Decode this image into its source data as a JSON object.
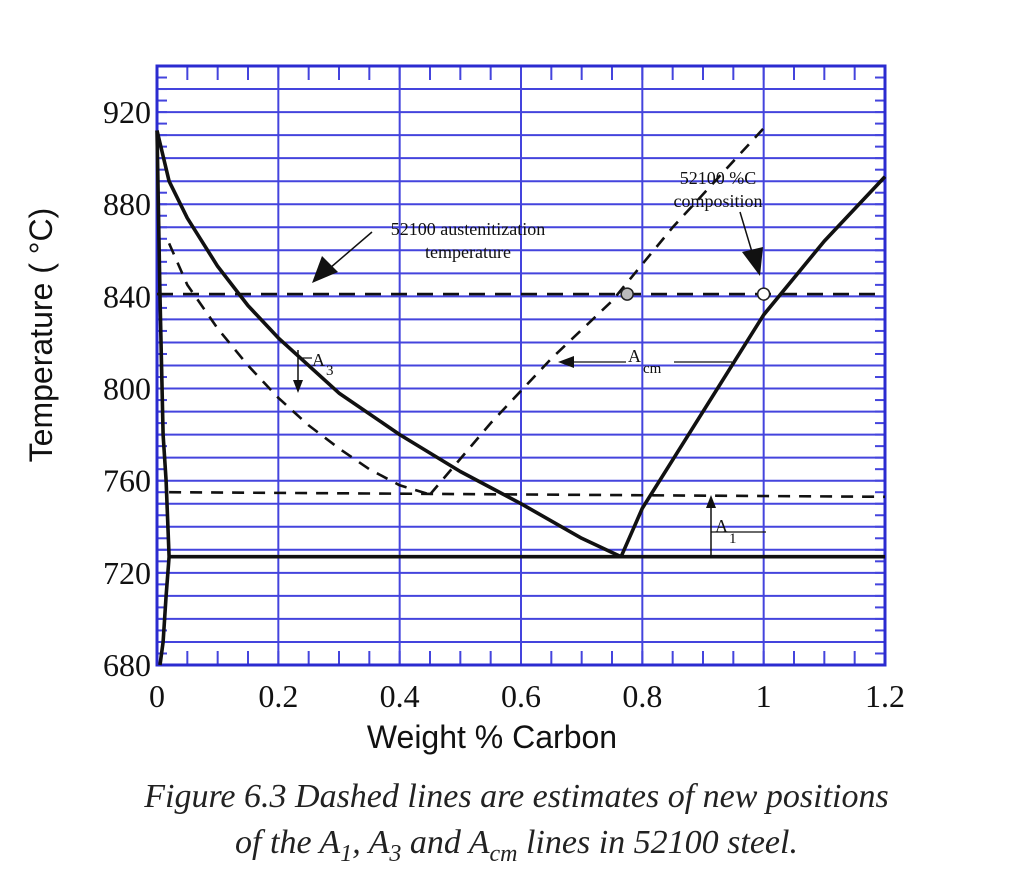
{
  "chart_data": {
    "type": "line",
    "title": "",
    "xlabel": "Weight % Carbon",
    "ylabel": "Temperature  ( °C)",
    "xlim": [
      0,
      1.2
    ],
    "ylim": [
      680,
      940
    ],
    "xticks": [
      "0",
      "0.2",
      "0.4",
      "0.6",
      "0.8",
      "1",
      "1.2"
    ],
    "yticks": [
      "680",
      "720",
      "760",
      "800",
      "840",
      "880",
      "920"
    ],
    "grid": true,
    "series": [
      {
        "style": "solid",
        "points": [
          [
            0,
            912
          ],
          [
            0.02,
            890
          ],
          [
            0.05,
            874
          ],
          [
            0.1,
            853
          ],
          [
            0.15,
            836
          ],
          [
            0.2,
            822
          ],
          [
            0.3,
            798
          ],
          [
            0.4,
            780
          ],
          [
            0.5,
            764
          ],
          [
            0.6,
            750
          ],
          [
            0.7,
            735
          ],
          [
            0.765,
            727
          ]
        ]
      },
      {
        "style": "solid",
        "points": [
          [
            0.765,
            727
          ],
          [
            0.8,
            748
          ],
          [
            0.9,
            790
          ],
          [
            1.0,
            832
          ],
          [
            1.1,
            864
          ],
          [
            1.2,
            892
          ]
        ]
      },
      {
        "style": "solid",
        "points": [
          [
            0.02,
            727
          ],
          [
            1.2,
            727
          ]
        ]
      },
      {
        "style": "solid",
        "points": [
          [
            0,
            912
          ],
          [
            0.005,
            840
          ],
          [
            0.01,
            780
          ],
          [
            0.015,
            760
          ],
          [
            0.02,
            727
          ],
          [
            0.015,
            710
          ],
          [
            0.01,
            690
          ],
          [
            0.005,
            680
          ]
        ]
      },
      {
        "style": "dashed",
        "points": [
          [
            0.02,
            863
          ],
          [
            0.05,
            845
          ],
          [
            0.1,
            826
          ],
          [
            0.15,
            810
          ],
          [
            0.2,
            796
          ],
          [
            0.25,
            784
          ],
          [
            0.3,
            774
          ],
          [
            0.35,
            765
          ],
          [
            0.4,
            758
          ],
          [
            0.45,
            754
          ]
        ]
      },
      {
        "style": "dashed",
        "points": [
          [
            0.45,
            754
          ],
          [
            0.55,
            785
          ],
          [
            0.65,
            813
          ],
          [
            0.75,
            838
          ],
          [
            0.85,
            870
          ],
          [
            1.0,
            913
          ]
        ]
      },
      {
        "style": "dashed",
        "points": [
          [
            0.02,
            755
          ],
          [
            1.2,
            753
          ]
        ]
      },
      {
        "style": "dashed",
        "points": [
          [
            0,
            841
          ],
          [
            1.2,
            841
          ]
        ]
      }
    ],
    "markers": [
      {
        "x": 0.775,
        "y": 841,
        "fill": "#bbbbbb"
      },
      {
        "x": 1.0,
        "y": 841,
        "fill": "#ffffff"
      }
    ],
    "annotations": [
      {
        "label": "52100 austenitization",
        "line2": "temperature"
      },
      {
        "label": "52100 %C",
        "line2": "composition"
      },
      {
        "label": "A",
        "sub": "3"
      },
      {
        "label": "A",
        "sub": "cm"
      },
      {
        "label": "A",
        "sub": "1"
      }
    ]
  },
  "caption": {
    "line1": "Figure 6.3  Dashed lines are estimates of new positions",
    "line2_a": "of the A",
    "line2_a_sub": "1",
    "line2_b": ", A",
    "line2_b_sub": "3",
    "line2_c": " and A",
    "line2_c_sub": "cm",
    "line2_d": " lines in 52100 steel."
  },
  "colors": {
    "grid": "#4444dd",
    "frame": "#2b2bd0",
    "curve": "#111111"
  }
}
